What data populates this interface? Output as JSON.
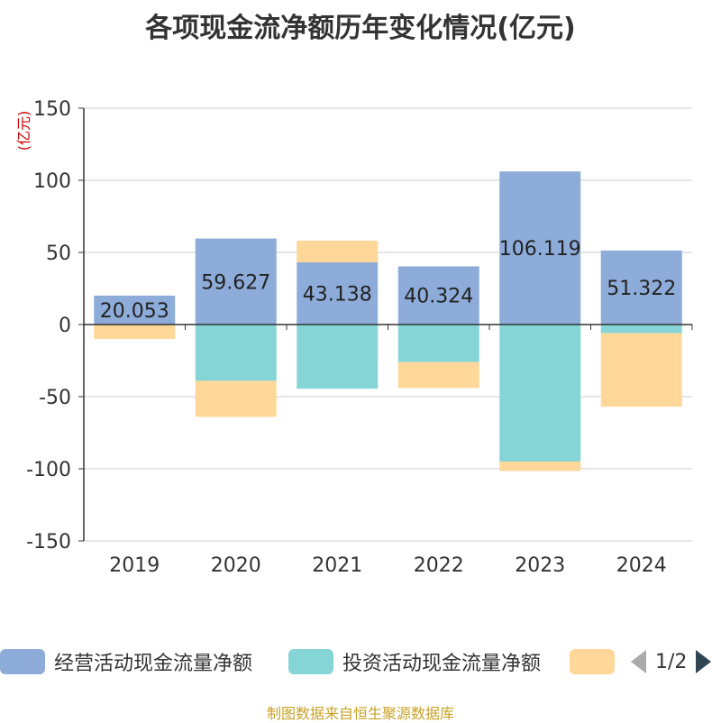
{
  "chart_data": {
    "type": "bar",
    "stacked": true,
    "title": "各项现金流净额历年变化情况(亿元)",
    "ylabel": "(亿元)",
    "ylim": [
      -150,
      150
    ],
    "yticks": [
      150,
      100,
      50,
      0,
      -50,
      -100,
      -150
    ],
    "categories": [
      "2019",
      "2020",
      "2021",
      "2022",
      "2023",
      "2024"
    ],
    "series": [
      {
        "name": "经营活动现金流量净额",
        "color": "#8eacd9",
        "values": [
          20.053,
          59.627,
          43.138,
          40.324,
          106.119,
          51.322
        ]
      },
      {
        "name": "投资活动现金流量净额",
        "color": "#86d5d6",
        "values": [
          0,
          -39,
          -44.5,
          -26,
          -95,
          -6
        ]
      },
      {
        "name": "",
        "color": "#ffd899",
        "values": [
          -10,
          -25,
          15,
          -18,
          -6.5,
          -51
        ]
      }
    ],
    "data_labels": [
      "20.053",
      "59.627",
      "43.138",
      "40.324",
      "106.119",
      "51.322"
    ]
  },
  "legend": {
    "items": [
      "经营活动现金流量净额",
      "投资活动现金流量净额",
      ""
    ],
    "page": "1/2"
  },
  "source": "制图数据来自恒生聚源数据库"
}
